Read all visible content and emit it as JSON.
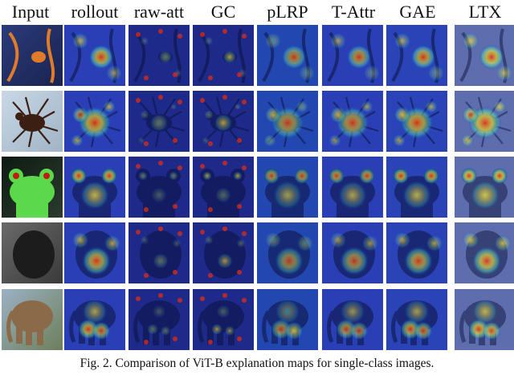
{
  "figure": {
    "columns": [
      "Input",
      "rollout",
      "raw-att",
      "GC",
      "pLRP",
      "T-Attr",
      "GAE",
      "LTX"
    ],
    "rows": [
      "fish",
      "tick",
      "frog",
      "gorilla",
      "elephant"
    ],
    "caption": "Fig. 2.  Comparison of ViT-B explanation maps for single-class images."
  },
  "colors": {
    "heat_low": "#1e2a9e",
    "heat_mid": "#39c7c2",
    "heat_high": "#d62b17",
    "heat_hot": "#f1e43a"
  }
}
